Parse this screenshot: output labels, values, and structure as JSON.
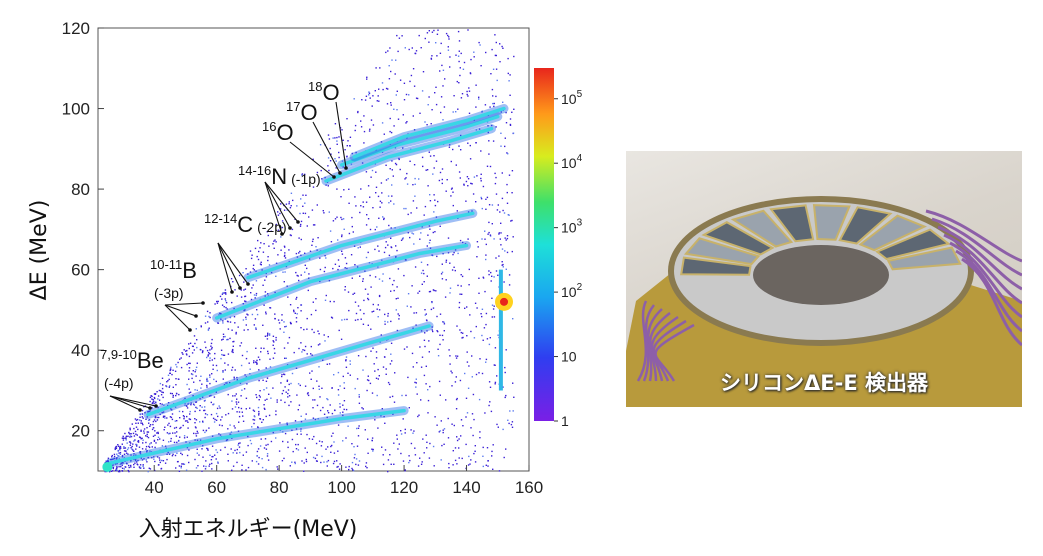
{
  "chart_data": {
    "type": "heatmap",
    "title": "",
    "xlabel": "入射エネルギー(MeV)",
    "ylabel": "ΔE (MeV)",
    "xlim": [
      22,
      160
    ],
    "ylim": [
      10,
      120
    ],
    "x_ticks": [
      40,
      60,
      80,
      100,
      120,
      140,
      160
    ],
    "y_ticks": [
      20,
      40,
      60,
      80,
      100,
      120
    ],
    "colorbar": {
      "scale": "log",
      "min": 1,
      "max": 300000,
      "ticks": [
        "1",
        "10",
        "10",
        "10",
        "10",
        "10"
      ],
      "tick_exponents": [
        "",
        "",
        "2",
        "3",
        "4",
        "5"
      ],
      "tick_values": [
        1,
        10,
        100,
        1000,
        10000,
        100000
      ]
    },
    "bands": [
      {
        "name": "7,9-10Be",
        "points": [
          [
            26,
            12
          ],
          [
            60,
            18
          ],
          [
            100,
            23
          ],
          [
            120,
            25
          ]
        ]
      },
      {
        "name": "10-11B",
        "points": [
          [
            38,
            24
          ],
          [
            70,
            33
          ],
          [
            110,
            42
          ],
          [
            128,
            46
          ]
        ]
      },
      {
        "name": "12-14C",
        "points": [
          [
            60,
            48
          ],
          [
            90,
            57
          ],
          [
            125,
            64
          ],
          [
            140,
            66
          ]
        ]
      },
      {
        "name": "14-16N",
        "points": [
          [
            70,
            58
          ],
          [
            100,
            66
          ],
          [
            130,
            72
          ],
          [
            142,
            74
          ]
        ]
      },
      {
        "name": "16O",
        "points": [
          [
            95,
            82
          ],
          [
            115,
            88
          ],
          [
            135,
            92
          ],
          [
            148,
            95
          ]
        ]
      },
      {
        "name": "17O",
        "points": [
          [
            100,
            86
          ],
          [
            118,
            91
          ],
          [
            138,
            95
          ],
          [
            150,
            98
          ]
        ]
      },
      {
        "name": "18O",
        "points": [
          [
            104,
            88
          ],
          [
            120,
            93
          ],
          [
            140,
            97
          ],
          [
            152,
            100
          ]
        ]
      }
    ],
    "hotspot": {
      "x": 152,
      "y": 52
    },
    "annotations": [
      {
        "id": "be",
        "pre": "7,9-10",
        "main": "Be",
        "sub": "(-4p)"
      },
      {
        "id": "b",
        "pre": "10-11",
        "main": "B",
        "sub": "(-3p)"
      },
      {
        "id": "c",
        "pre": "12-14",
        "main": "C",
        "sub": "(-2p)"
      },
      {
        "id": "n",
        "pre": "14-16",
        "main": "N",
        "sub": "(-1p)"
      },
      {
        "id": "o16",
        "pre": "16",
        "main": "O",
        "sub": ""
      },
      {
        "id": "o17",
        "pre": "17",
        "main": "O",
        "sub": ""
      },
      {
        "id": "o18",
        "pre": "18",
        "main": "O",
        "sub": ""
      }
    ]
  },
  "photo": {
    "caption": "シリコンΔE-E 検出器",
    "colors": {
      "board": "#b89a3c",
      "metal": "#c9c9c9",
      "wire": "#8d5fa8"
    }
  }
}
